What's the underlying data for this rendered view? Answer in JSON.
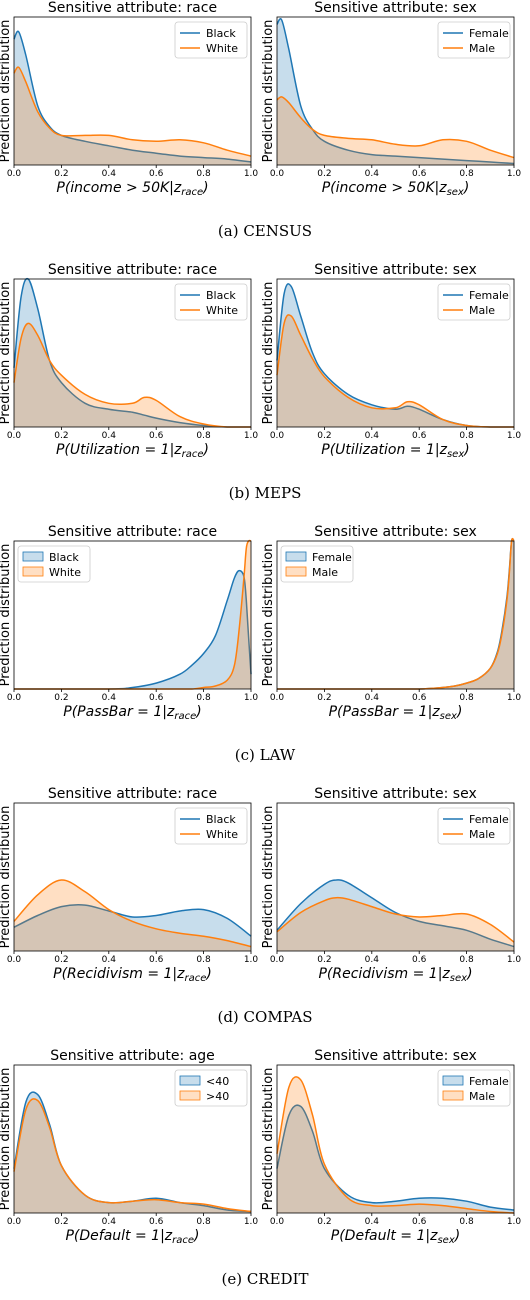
{
  "colors": {
    "blue": "#1f77b4",
    "orange": "#ff7f0e",
    "blue_fill": "rgba(31,119,180,0.25)",
    "orange_fill": "rgba(255,127,14,0.25)"
  },
  "ylabel": "Prediction distribution",
  "groups": [
    {
      "caption": "(a)  CENSUS",
      "legend_style": "line",
      "legend_pos": "top-right",
      "panels": [
        {
          "title": "Sensitive attribute: race",
          "xlabel": "P(income > 50K|z_race)",
          "labels": [
            "Black",
            "White"
          ]
        },
        {
          "title": "Sensitive attribute: sex",
          "xlabel": "P(income > 50K|z_sex)",
          "labels": [
            "Female",
            "Male"
          ]
        }
      ]
    },
    {
      "caption": "(b)  MEPS",
      "legend_style": "line",
      "legend_pos": "top-right",
      "panels": [
        {
          "title": "Sensitive attribute: race",
          "xlabel": "P(Utilization = 1|z_race)",
          "labels": [
            "Black",
            "White"
          ]
        },
        {
          "title": "Sensitive attribute: sex",
          "xlabel": "P(Utilization = 1|z_sex)",
          "labels": [
            "Female",
            "Male"
          ]
        }
      ]
    },
    {
      "caption": "(c)  LAW",
      "legend_style": "patch",
      "legend_pos": "top-left",
      "panels": [
        {
          "title": "Sensitive attribute: race",
          "xlabel": "P(PassBar = 1|z_race)",
          "labels": [
            "Black",
            "White"
          ]
        },
        {
          "title": "Sensitive attribute: sex",
          "xlabel": "P(PassBar = 1|z_sex)",
          "labels": [
            "Female",
            "Male"
          ]
        }
      ]
    },
    {
      "caption": "(d)  COMPAS",
      "legend_style": "line",
      "legend_pos": "top-right",
      "panels": [
        {
          "title": "Sensitive attribute: race",
          "xlabel": "P(Recidivism = 1|z_race)",
          "labels": [
            "Black",
            "White"
          ]
        },
        {
          "title": "Sensitive attribute: sex",
          "xlabel": "P(Recidivism = 1|z_sex)",
          "labels": [
            "Female",
            "Male"
          ]
        }
      ]
    },
    {
      "caption": "(e)  CREDIT",
      "legend_style": "patch",
      "legend_pos": "top-right",
      "panels": [
        {
          "title": "Sensitive attribute: age",
          "xlabel": "P(Default = 1|z_race)",
          "labels": [
            "<40",
            ">40"
          ]
        },
        {
          "title": "Sensitive attribute: sex",
          "xlabel": "P(Default = 1|z_sex)",
          "labels": [
            "Female",
            "Male"
          ]
        }
      ]
    }
  ],
  "chart_data": [
    {
      "type": "area",
      "title": "Sensitive attribute: race",
      "xlabel": "P(income > 50K|z_race)",
      "ylabel": "Prediction distribution",
      "xlim": [
        0,
        1
      ],
      "ylim": [
        0,
        1
      ],
      "x_ticks": [
        0.0,
        0.2,
        0.4,
        0.6,
        0.8,
        1.0
      ],
      "x": [
        0.0,
        0.02,
        0.05,
        0.1,
        0.15,
        0.2,
        0.3,
        0.4,
        0.5,
        0.6,
        0.7,
        0.8,
        0.9,
        1.0
      ],
      "series": [
        {
          "name": "Black",
          "values": [
            0.85,
            0.9,
            0.74,
            0.4,
            0.26,
            0.2,
            0.16,
            0.13,
            0.1,
            0.08,
            0.06,
            0.05,
            0.04,
            0.02
          ]
        },
        {
          "name": "White",
          "values": [
            0.62,
            0.66,
            0.56,
            0.36,
            0.25,
            0.2,
            0.2,
            0.2,
            0.17,
            0.16,
            0.17,
            0.15,
            0.1,
            0.06
          ]
        }
      ]
    },
    {
      "type": "area",
      "title": "Sensitive attribute: sex",
      "xlabel": "P(income > 50K|z_sex)",
      "ylabel": "Prediction distribution",
      "xlim": [
        0,
        1
      ],
      "ylim": [
        0,
        1
      ],
      "x_ticks": [
        0.0,
        0.2,
        0.4,
        0.6,
        0.8,
        1.0
      ],
      "x": [
        0.0,
        0.02,
        0.05,
        0.1,
        0.15,
        0.2,
        0.3,
        0.4,
        0.5,
        0.6,
        0.7,
        0.8,
        0.9,
        1.0
      ],
      "series": [
        {
          "name": "Female",
          "values": [
            0.95,
            0.98,
            0.78,
            0.4,
            0.24,
            0.16,
            0.1,
            0.07,
            0.06,
            0.05,
            0.04,
            0.03,
            0.02,
            0.01
          ]
        },
        {
          "name": "Male",
          "values": [
            0.44,
            0.46,
            0.42,
            0.32,
            0.24,
            0.2,
            0.18,
            0.17,
            0.14,
            0.13,
            0.17,
            0.16,
            0.1,
            0.05
          ]
        }
      ]
    },
    {
      "type": "area",
      "title": "Sensitive attribute: race",
      "xlabel": "P(Utilization = 1|z_race)",
      "ylabel": "Prediction distribution",
      "xlim": [
        0,
        1
      ],
      "ylim": [
        0,
        1
      ],
      "x_ticks": [
        0.0,
        0.2,
        0.4,
        0.6,
        0.8,
        1.0
      ],
      "x": [
        0.0,
        0.03,
        0.06,
        0.1,
        0.15,
        0.2,
        0.3,
        0.4,
        0.5,
        0.55,
        0.6,
        0.7,
        0.8,
        0.9,
        1.0
      ],
      "series": [
        {
          "name": "Black",
          "values": [
            0.4,
            0.88,
            1.0,
            0.8,
            0.45,
            0.3,
            0.16,
            0.12,
            0.1,
            0.08,
            0.06,
            0.03,
            0.01,
            0.0,
            0.0
          ]
        },
        {
          "name": "White",
          "values": [
            0.3,
            0.6,
            0.7,
            0.62,
            0.45,
            0.35,
            0.22,
            0.16,
            0.16,
            0.2,
            0.18,
            0.07,
            0.02,
            0.0,
            0.0
          ]
        }
      ]
    },
    {
      "type": "area",
      "title": "Sensitive attribute: sex",
      "xlabel": "P(Utilization = 1|z_sex)",
      "ylabel": "Prediction distribution",
      "xlim": [
        0,
        1
      ],
      "ylim": [
        0,
        1
      ],
      "x_ticks": [
        0.0,
        0.2,
        0.4,
        0.6,
        0.8,
        1.0
      ],
      "x": [
        0.0,
        0.03,
        0.06,
        0.1,
        0.15,
        0.2,
        0.3,
        0.4,
        0.5,
        0.55,
        0.6,
        0.7,
        0.8,
        0.9,
        1.0
      ],
      "series": [
        {
          "name": "Female",
          "values": [
            0.45,
            0.9,
            0.95,
            0.75,
            0.5,
            0.36,
            0.22,
            0.15,
            0.12,
            0.14,
            0.12,
            0.05,
            0.01,
            0.0,
            0.0
          ]
        },
        {
          "name": "Male",
          "values": [
            0.35,
            0.7,
            0.75,
            0.62,
            0.46,
            0.34,
            0.2,
            0.13,
            0.13,
            0.17,
            0.15,
            0.05,
            0.01,
            0.0,
            0.0
          ]
        }
      ]
    },
    {
      "type": "area",
      "title": "Sensitive attribute: race",
      "xlabel": "P(PassBar = 1|z_race)",
      "ylabel": "Prediction distribution",
      "xlim": [
        0,
        1
      ],
      "ylim": [
        0,
        1
      ],
      "x_ticks": [
        0.0,
        0.2,
        0.4,
        0.6,
        0.8,
        1.0
      ],
      "x": [
        0.0,
        0.4,
        0.5,
        0.6,
        0.7,
        0.75,
        0.8,
        0.85,
        0.9,
        0.93,
        0.95,
        0.97,
        0.98,
        0.99,
        1.0
      ],
      "series": [
        {
          "name": "Black",
          "values": [
            0.0,
            0.0,
            0.01,
            0.04,
            0.1,
            0.16,
            0.24,
            0.36,
            0.6,
            0.75,
            0.8,
            0.76,
            0.6,
            0.35,
            0.1
          ]
        },
        {
          "name": "White",
          "values": [
            0.0,
            0.0,
            0.0,
            0.0,
            0.0,
            0.0,
            0.01,
            0.02,
            0.06,
            0.16,
            0.4,
            0.75,
            0.95,
            1.0,
            1.0
          ]
        }
      ]
    },
    {
      "type": "area",
      "title": "Sensitive attribute: sex",
      "xlabel": "P(PassBar = 1|z_sex)",
      "ylabel": "Prediction distribution",
      "xlim": [
        0,
        1
      ],
      "ylim": [
        0,
        1
      ],
      "x_ticks": [
        0.0,
        0.2,
        0.4,
        0.6,
        0.8,
        1.0
      ],
      "x": [
        0.0,
        0.5,
        0.6,
        0.7,
        0.75,
        0.8,
        0.85,
        0.9,
        0.93,
        0.95,
        0.97,
        0.98,
        0.99,
        1.0
      ],
      "series": [
        {
          "name": "Female",
          "values": [
            0.0,
            0.0,
            0.0,
            0.01,
            0.02,
            0.04,
            0.07,
            0.14,
            0.25,
            0.4,
            0.62,
            0.8,
            1.0,
            1.0
          ]
        },
        {
          "name": "Male",
          "values": [
            0.0,
            0.0,
            0.0,
            0.01,
            0.02,
            0.04,
            0.07,
            0.14,
            0.24,
            0.38,
            0.6,
            0.78,
            1.0,
            1.0
          ]
        }
      ]
    },
    {
      "type": "area",
      "title": "Sensitive attribute: race",
      "xlabel": "P(Recidivism = 1|z_race)",
      "ylabel": "Prediction distribution",
      "xlim": [
        0,
        1
      ],
      "ylim": [
        0,
        1
      ],
      "x_ticks": [
        0.0,
        0.2,
        0.4,
        0.6,
        0.8,
        1.0
      ],
      "x": [
        0.0,
        0.1,
        0.2,
        0.3,
        0.4,
        0.5,
        0.6,
        0.7,
        0.8,
        0.9,
        1.0
      ],
      "series": [
        {
          "name": "Black",
          "values": [
            0.16,
            0.24,
            0.3,
            0.31,
            0.27,
            0.23,
            0.24,
            0.27,
            0.28,
            0.22,
            0.1
          ]
        },
        {
          "name": "White",
          "values": [
            0.2,
            0.38,
            0.48,
            0.4,
            0.28,
            0.2,
            0.15,
            0.12,
            0.1,
            0.07,
            0.03
          ]
        }
      ]
    },
    {
      "type": "area",
      "title": "Sensitive attribute: sex",
      "xlabel": "P(Recidivism = 1|z_sex)",
      "ylabel": "Prediction distribution",
      "xlim": [
        0,
        1
      ],
      "ylim": [
        0,
        1
      ],
      "x_ticks": [
        0.0,
        0.2,
        0.4,
        0.6,
        0.8,
        1.0
      ],
      "x": [
        0.0,
        0.1,
        0.2,
        0.25,
        0.3,
        0.4,
        0.5,
        0.6,
        0.7,
        0.8,
        0.9,
        1.0
      ],
      "series": [
        {
          "name": "Female",
          "values": [
            0.14,
            0.32,
            0.45,
            0.48,
            0.46,
            0.36,
            0.26,
            0.2,
            0.17,
            0.14,
            0.08,
            0.03
          ]
        },
        {
          "name": "Male",
          "values": [
            0.13,
            0.26,
            0.34,
            0.36,
            0.35,
            0.3,
            0.25,
            0.23,
            0.24,
            0.25,
            0.18,
            0.06
          ]
        }
      ]
    },
    {
      "type": "area",
      "title": "Sensitive attribute: age",
      "xlabel": "P(Default = 1|z_race)",
      "ylabel": "Prediction distribution",
      "xlim": [
        0,
        1
      ],
      "ylim": [
        0,
        1
      ],
      "x_ticks": [
        0.0,
        0.2,
        0.4,
        0.6,
        0.8,
        1.0
      ],
      "x": [
        0.0,
        0.05,
        0.1,
        0.15,
        0.2,
        0.3,
        0.4,
        0.5,
        0.6,
        0.7,
        0.8,
        0.9,
        1.0
      ],
      "series": [
        {
          "name": "<40",
          "values": [
            0.3,
            0.75,
            0.8,
            0.6,
            0.32,
            0.12,
            0.07,
            0.08,
            0.1,
            0.07,
            0.05,
            0.02,
            0.01
          ]
        },
        {
          "name": ">40",
          "values": [
            0.28,
            0.7,
            0.76,
            0.58,
            0.32,
            0.12,
            0.07,
            0.08,
            0.09,
            0.07,
            0.06,
            0.03,
            0.01
          ]
        }
      ]
    },
    {
      "type": "area",
      "title": "Sensitive attribute: sex",
      "xlabel": "P(Default = 1|z_sex)",
      "ylabel": "Prediction distribution",
      "xlim": [
        0,
        1
      ],
      "ylim": [
        0,
        1
      ],
      "x_ticks": [
        0.0,
        0.2,
        0.4,
        0.6,
        0.8,
        1.0
      ],
      "x": [
        0.0,
        0.05,
        0.1,
        0.15,
        0.2,
        0.3,
        0.4,
        0.5,
        0.6,
        0.7,
        0.8,
        0.9,
        1.0
      ],
      "series": [
        {
          "name": "Female",
          "values": [
            0.3,
            0.66,
            0.72,
            0.55,
            0.3,
            0.12,
            0.07,
            0.08,
            0.1,
            0.1,
            0.08,
            0.04,
            0.02
          ]
        },
        {
          "name": "Male",
          "values": [
            0.4,
            0.85,
            0.9,
            0.66,
            0.33,
            0.1,
            0.05,
            0.05,
            0.06,
            0.05,
            0.03,
            0.01,
            0.0
          ]
        }
      ]
    }
  ]
}
